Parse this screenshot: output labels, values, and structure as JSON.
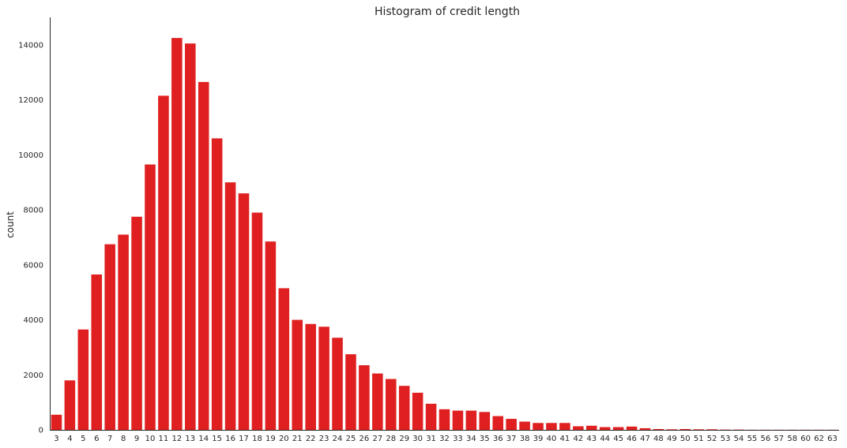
{
  "chart_data": {
    "type": "bar",
    "title": "Histogram of credit length",
    "xlabel": "",
    "ylabel": "count",
    "categories": [
      "3",
      "4",
      "5",
      "6",
      "7",
      "8",
      "9",
      "10",
      "11",
      "12",
      "13",
      "14",
      "15",
      "16",
      "17",
      "18",
      "19",
      "20",
      "21",
      "22",
      "23",
      "24",
      "25",
      "26",
      "27",
      "28",
      "29",
      "30",
      "31",
      "32",
      "33",
      "34",
      "35",
      "36",
      "37",
      "38",
      "39",
      "40",
      "41",
      "42",
      "43",
      "44",
      "45",
      "46",
      "47",
      "48",
      "49",
      "50",
      "51",
      "52",
      "53",
      "54",
      "55",
      "56",
      "57",
      "58",
      "60",
      "62",
      "63"
    ],
    "values": [
      550,
      1800,
      3650,
      5650,
      6750,
      7100,
      7750,
      9650,
      12150,
      14250,
      14050,
      12650,
      10600,
      9000,
      8600,
      7900,
      6850,
      5150,
      4000,
      3850,
      3750,
      3350,
      2750,
      2350,
      2050,
      1850,
      1600,
      1350,
      950,
      750,
      700,
      700,
      650,
      500,
      400,
      300,
      250,
      250,
      250,
      130,
      150,
      100,
      100,
      120,
      60,
      30,
      20,
      30,
      20,
      20,
      10,
      10,
      5,
      5,
      5,
      5,
      5,
      5,
      5
    ],
    "ylim": [
      0,
      15000
    ],
    "yticks": [
      0,
      2000,
      4000,
      6000,
      8000,
      10000,
      12000,
      14000
    ],
    "grid": false,
    "colors": {
      "bar": "#e02020",
      "axis": "#262626"
    }
  }
}
